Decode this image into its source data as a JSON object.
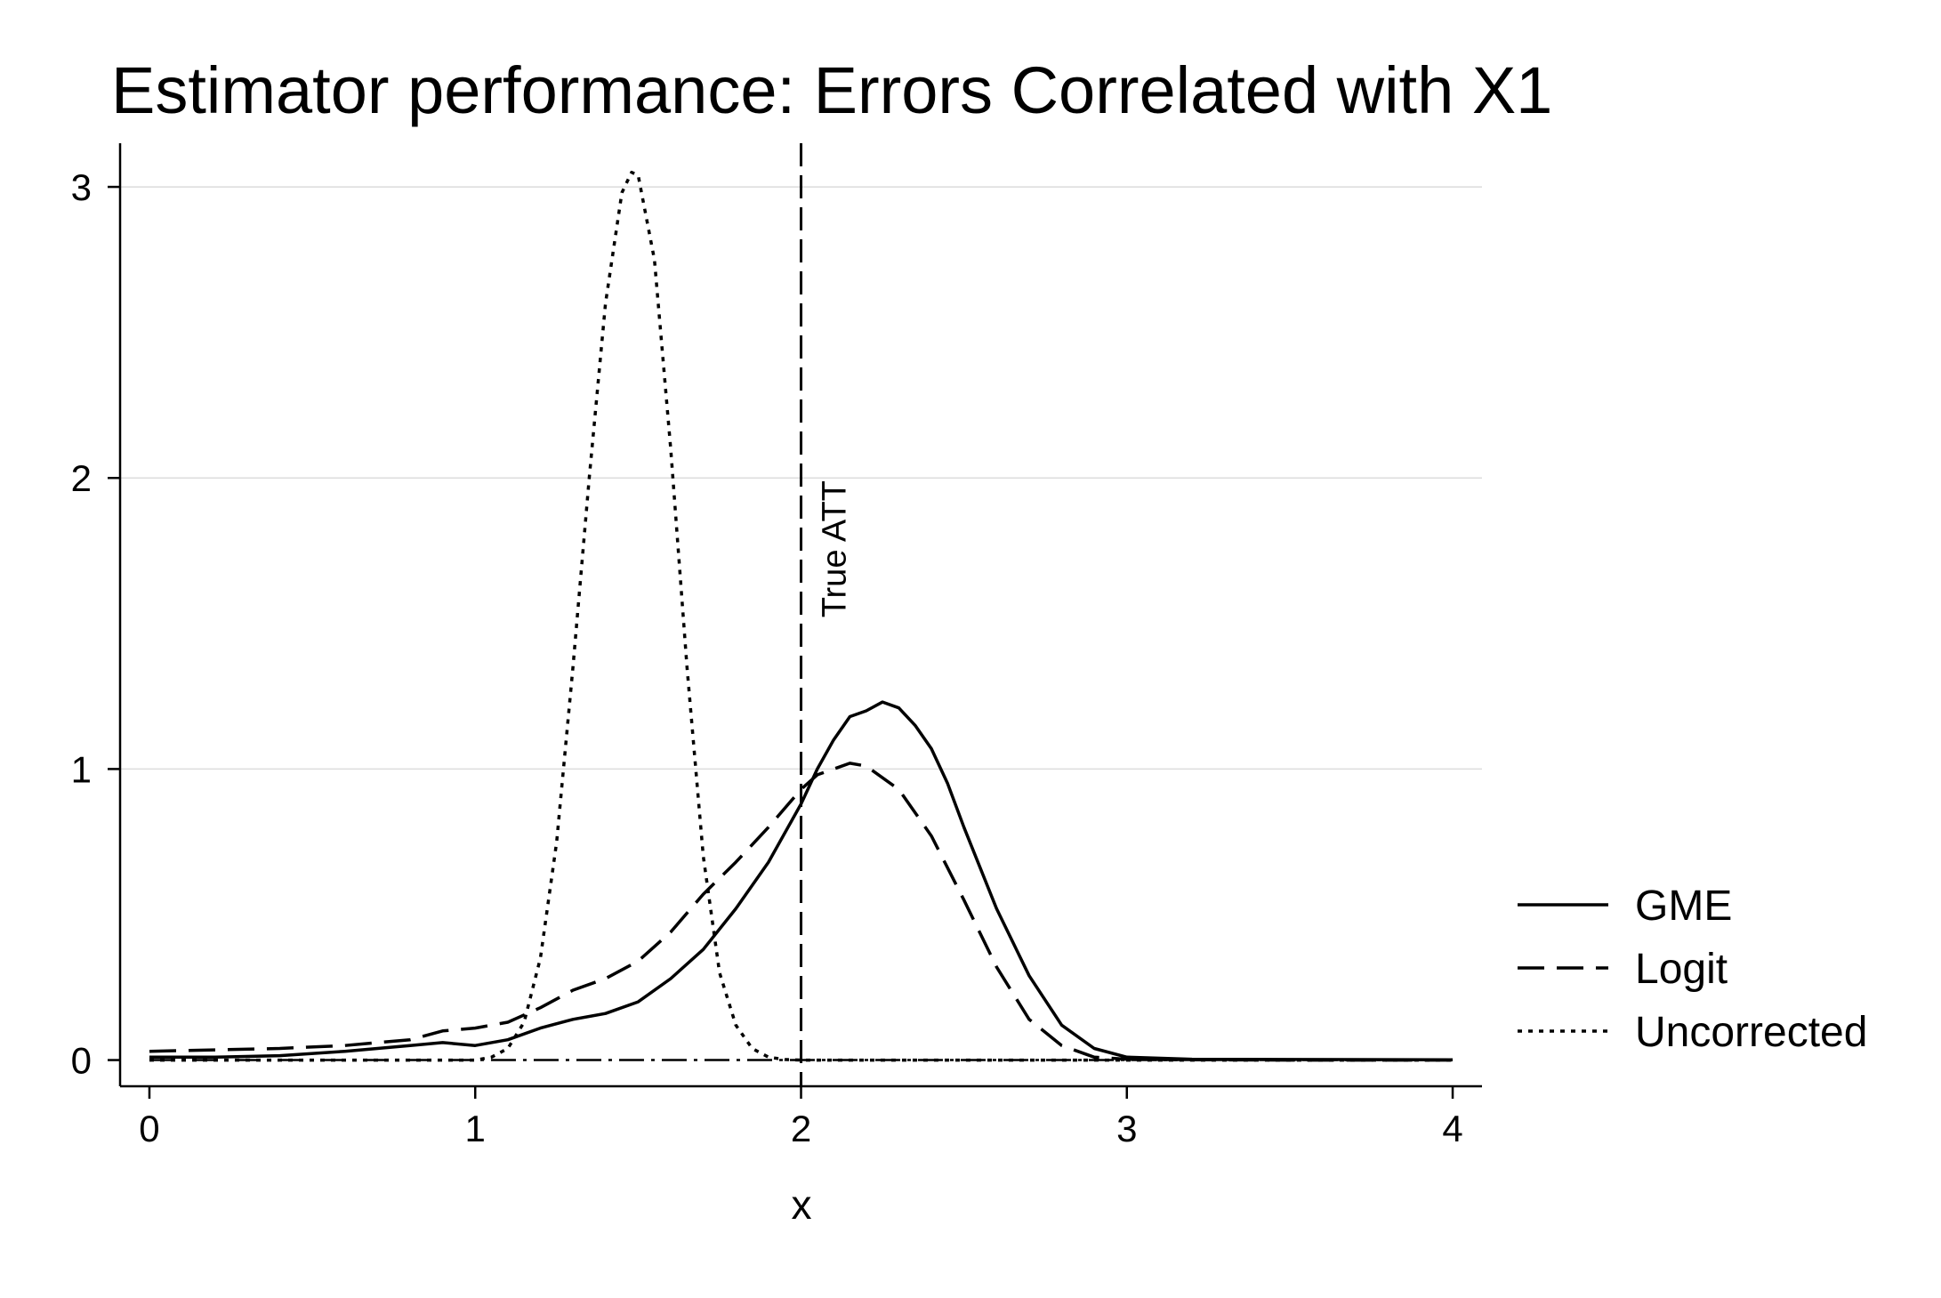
{
  "chart_data": {
    "type": "line",
    "title": "Estimator performance: Errors Correlated with X1",
    "xlabel": "x",
    "ylabel": "",
    "xlim": [
      -0.09,
      4.09
    ],
    "ylim": [
      -0.09,
      3.15
    ],
    "xticks": [
      0,
      1,
      2,
      3,
      4
    ],
    "yticks": [
      0,
      1,
      2,
      3
    ],
    "grid": "horizontal",
    "legend_position": "right",
    "reference_line": {
      "x": 2,
      "label": "True ATT",
      "style": "dashed"
    },
    "baseline": {
      "y": 0,
      "style": "dash-dot"
    },
    "series": [
      {
        "name": "GME",
        "style": "solid",
        "x": [
          0.0,
          0.2,
          0.4,
          0.6,
          0.8,
          0.9,
          1.0,
          1.1,
          1.2,
          1.3,
          1.4,
          1.5,
          1.6,
          1.7,
          1.8,
          1.9,
          2.0,
          2.05,
          2.1,
          2.15,
          2.2,
          2.25,
          2.3,
          2.35,
          2.4,
          2.45,
          2.5,
          2.6,
          2.7,
          2.8,
          2.9,
          3.0,
          3.2,
          3.5,
          4.0
        ],
        "y": [
          0.01,
          0.01,
          0.015,
          0.03,
          0.05,
          0.06,
          0.05,
          0.07,
          0.11,
          0.14,
          0.16,
          0.2,
          0.28,
          0.38,
          0.52,
          0.68,
          0.88,
          1.0,
          1.1,
          1.18,
          1.2,
          1.23,
          1.21,
          1.15,
          1.07,
          0.95,
          0.8,
          0.52,
          0.29,
          0.12,
          0.04,
          0.01,
          0.003,
          0.002,
          0.001
        ]
      },
      {
        "name": "Logit",
        "style": "dashed",
        "x": [
          0.0,
          0.2,
          0.4,
          0.6,
          0.8,
          0.9,
          1.0,
          1.1,
          1.2,
          1.3,
          1.4,
          1.5,
          1.6,
          1.7,
          1.8,
          1.9,
          2.0,
          2.05,
          2.1,
          2.15,
          2.2,
          2.3,
          2.4,
          2.5,
          2.6,
          2.7,
          2.8,
          2.9,
          3.0,
          3.2,
          3.5,
          4.0
        ],
        "y": [
          0.03,
          0.035,
          0.04,
          0.05,
          0.07,
          0.1,
          0.11,
          0.13,
          0.18,
          0.24,
          0.28,
          0.34,
          0.44,
          0.57,
          0.68,
          0.8,
          0.93,
          0.98,
          1.0,
          1.02,
          1.01,
          0.93,
          0.77,
          0.55,
          0.32,
          0.14,
          0.05,
          0.01,
          0.003,
          0.001,
          0.0,
          0.0
        ]
      },
      {
        "name": "Uncorrected",
        "style": "dotted",
        "x": [
          0.0,
          0.5,
          1.0,
          1.05,
          1.1,
          1.15,
          1.2,
          1.25,
          1.3,
          1.35,
          1.4,
          1.45,
          1.48,
          1.5,
          1.55,
          1.6,
          1.65,
          1.7,
          1.75,
          1.8,
          1.85,
          1.9,
          1.95,
          2.0,
          2.5,
          4.0
        ],
        "y": [
          0.0,
          0.0,
          0.0,
          0.01,
          0.04,
          0.13,
          0.35,
          0.75,
          1.35,
          2.0,
          2.6,
          2.98,
          3.05,
          3.04,
          2.75,
          2.1,
          1.35,
          0.7,
          0.3,
          0.12,
          0.04,
          0.01,
          0.002,
          0.0,
          0.0,
          0.0
        ]
      }
    ]
  }
}
